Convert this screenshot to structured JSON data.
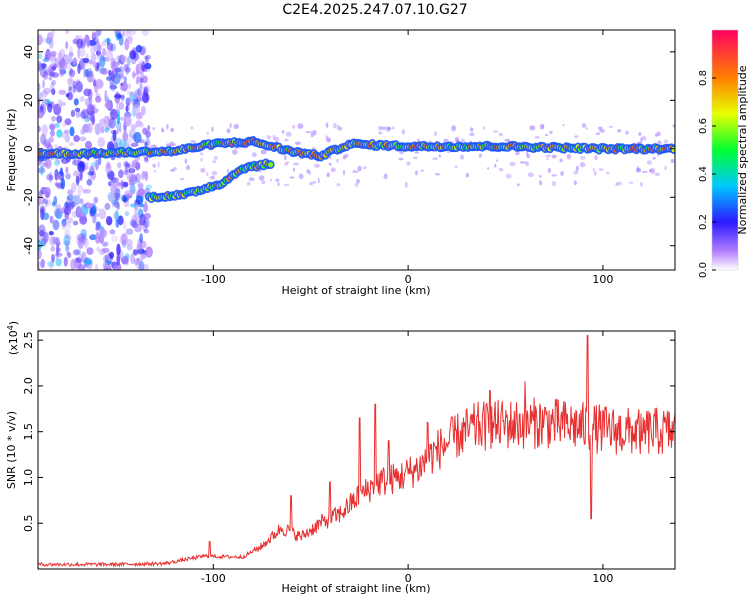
{
  "title": "C2E4.2025.247.07.10.G27",
  "chart_data": [
    {
      "type": "heatmap",
      "name": "spectrogram",
      "xlabel": "Height of straight line (km)",
      "ylabel": "Frequency (Hz)",
      "xlim": [
        -190,
        137
      ],
      "ylim": [
        -50,
        49
      ],
      "xticks": [
        -100,
        0,
        100
      ],
      "yticks": [
        -40,
        -20,
        0,
        20,
        40
      ],
      "colorbar": {
        "label": "Normalized spectral amplitude",
        "range": [
          0,
          1
        ],
        "ticks": [
          0.0,
          0.2,
          0.4,
          0.6,
          0.8
        ]
      },
      "features": [
        {
          "name": "noise band",
          "x_range": [
            -190,
            -133
          ],
          "freq_range": [
            -50,
            49
          ],
          "amplitude": 0.15
        },
        {
          "name": "main trace",
          "points": [
            [
              -190,
              -2
            ],
            [
              -170,
              -2
            ],
            [
              -120,
              -1
            ],
            [
              -100,
              2
            ],
            [
              -80,
              3
            ],
            [
              -60,
              -1
            ],
            [
              -45,
              -3
            ],
            [
              -30,
              2
            ],
            [
              0,
              1
            ],
            [
              50,
              1
            ],
            [
              100,
              0
            ],
            [
              137,
              0
            ]
          ],
          "amplitude": 0.9
        },
        {
          "name": "low branch",
          "points": [
            [
              -133,
              -20
            ],
            [
              -115,
              -19
            ],
            [
              -95,
              -14
            ],
            [
              -85,
              -8
            ],
            [
              -70,
              -6
            ]
          ],
          "amplitude": 0.85
        }
      ]
    },
    {
      "type": "line",
      "name": "snr",
      "xlabel": "Height of straight line (km)",
      "ylabel": "SNR (10 * v/v)",
      "scale_label": "(x10",
      "scale_exponent": "4",
      "ylabel_full": "(x10^4)",
      "xlim": [
        -190,
        137
      ],
      "ylim": [
        0,
        2.6
      ],
      "xticks": [
        -100,
        0,
        100
      ],
      "yticks": [
        0.5,
        1.0,
        1.5,
        2.0,
        2.5
      ],
      "color": "#e83030",
      "envelope": [
        [
          -190,
          0.05
        ],
        [
          -150,
          0.05
        ],
        [
          -125,
          0.06
        ],
        [
          -105,
          0.14
        ],
        [
          -85,
          0.13
        ],
        [
          -75,
          0.25
        ],
        [
          -65,
          0.45
        ],
        [
          -55,
          0.35
        ],
        [
          -45,
          0.5
        ],
        [
          -35,
          0.6
        ],
        [
          -25,
          0.8
        ],
        [
          -15,
          0.95
        ],
        [
          -5,
          1.0
        ],
        [
          5,
          1.1
        ],
        [
          15,
          1.3
        ],
        [
          25,
          1.45
        ],
        [
          35,
          1.55
        ],
        [
          50,
          1.58
        ],
        [
          70,
          1.6
        ],
        [
          90,
          1.55
        ],
        [
          110,
          1.5
        ],
        [
          137,
          1.5
        ]
      ],
      "peaks": [
        [
          -102,
          0.3
        ],
        [
          -60,
          0.8
        ],
        [
          -40,
          0.95
        ],
        [
          -25,
          1.65
        ],
        [
          -17,
          1.8
        ],
        [
          -10,
          1.4
        ],
        [
          10,
          1.6
        ],
        [
          42,
          1.95
        ],
        [
          60,
          2.05
        ],
        [
          92,
          2.55
        ],
        [
          94,
          0.55
        ],
        [
          120,
          1.4
        ],
        [
          137,
          1.7
        ]
      ]
    }
  ]
}
